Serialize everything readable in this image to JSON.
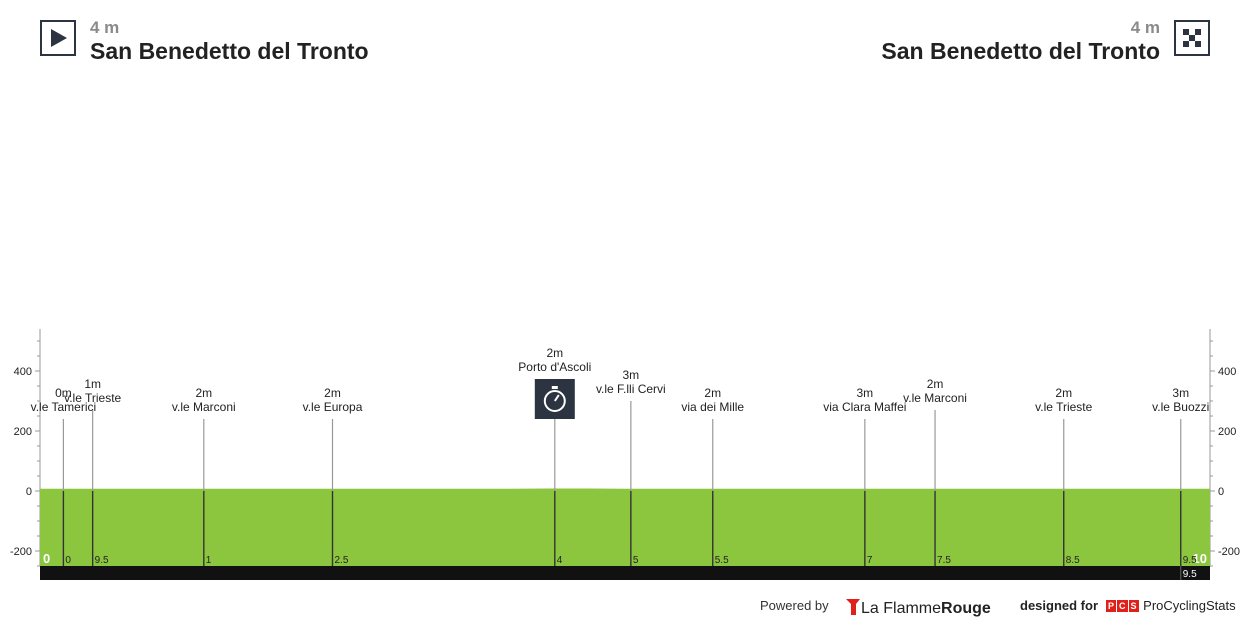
{
  "start": {
    "elevation": "4 m",
    "city": "San Benedetto del Tronto",
    "icon": "play-icon"
  },
  "finish": {
    "elevation": "4 m",
    "city": "San Benedetto del Tronto",
    "icon": "checkered-flag-icon"
  },
  "footer": {
    "powered_by": "Powered by",
    "lfr_part1": "La Flamme",
    "lfr_part2": "Rouge",
    "designed_for": "designed for",
    "pcs_badges": [
      "P",
      "C",
      "S"
    ],
    "pcs_name": "ProCyclingStats"
  },
  "colors": {
    "profile_fill": "#8cc63f",
    "baseline_bar": "#111111",
    "marker_line": "#999999",
    "header_text": "#222222",
    "elevation_text": "#8a8a8a"
  },
  "chart_data": {
    "type": "area",
    "xlim": [
      0,
      10
    ],
    "ylim": [
      -300,
      540
    ],
    "y_ticks": [
      -200,
      0,
      200,
      400
    ],
    "y_tick_labels": [
      "-200",
      "0",
      "200",
      "400"
    ],
    "x_start_label": "0",
    "x_end_label": "10",
    "profile": {
      "x": [
        0,
        0.25,
        2.6,
        3.8,
        4.0,
        4.35,
        4.7,
        5.0,
        5.5,
        6.6,
        7.0,
        7.6,
        9.5,
        9.7,
        10
      ],
      "y": [
        4,
        4,
        4,
        4,
        4,
        5,
        5,
        4,
        4,
        4,
        4,
        4,
        4,
        4,
        4
      ]
    },
    "markers": [
      {
        "x": 0.2,
        "top": 4,
        "elev": "0m",
        "name": "v.le Tamerici",
        "axis": "0"
      },
      {
        "x": 0.45,
        "top": 4.5,
        "elev": "1m",
        "name": "v.le Trieste",
        "axis": "9.5"
      },
      {
        "x": 1.4,
        "top": 4,
        "elev": "2m",
        "name": "v.le Marconi",
        "axis": "1"
      },
      {
        "x": 2.5,
        "top": 4,
        "elev": "2m",
        "name": "v.le Europa",
        "axis": "2.5"
      },
      {
        "x": 4.4,
        "top": 4,
        "elev": "2m",
        "name": "Porto d'Ascoli",
        "axis": "4",
        "icon": "stopwatch-icon"
      },
      {
        "x": 5.05,
        "top": 5,
        "elev": "3m",
        "name": "v.le F.lli Cervi",
        "axis": "5"
      },
      {
        "x": 5.75,
        "top": 4,
        "elev": "2m",
        "name": "via dei Mille",
        "axis": "5.5"
      },
      {
        "x": 7.05,
        "top": 4,
        "elev": "3m",
        "name": "via Clara Maffei",
        "axis": "7"
      },
      {
        "x": 7.65,
        "top": 4.5,
        "elev": "2m",
        "name": "v.le Marconi",
        "axis": "7.5"
      },
      {
        "x": 8.75,
        "top": 4,
        "elev": "2m",
        "name": "v.le Trieste",
        "axis": "8.5"
      },
      {
        "x": 9.75,
        "top": 4,
        "elev": "3m",
        "name": "v.le Buozzi",
        "axis": "9.5"
      }
    ],
    "bar_end_label": "9.5"
  }
}
